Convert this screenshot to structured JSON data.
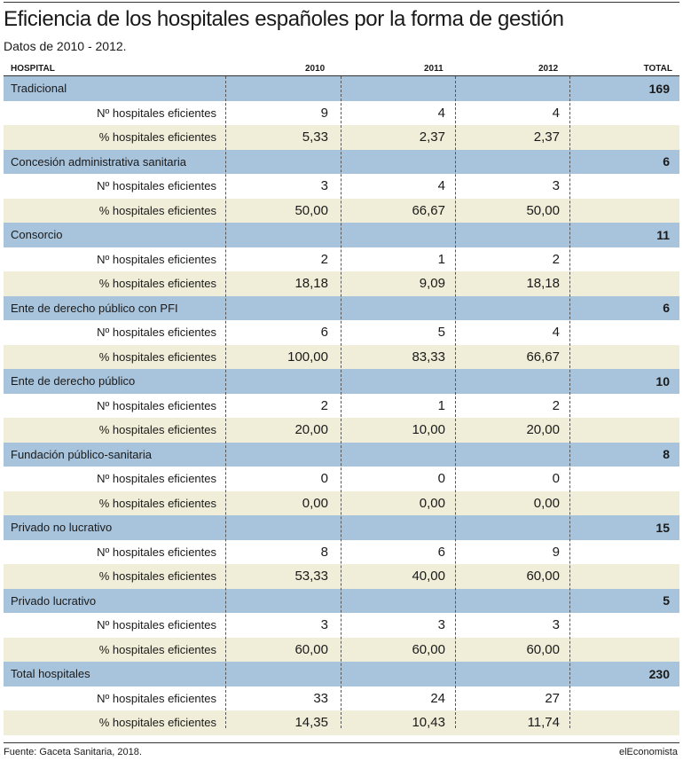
{
  "header": {
    "title": "Eficiencia de los hospitales españoles por la forma de gestión",
    "subtitle": "Datos de 2010 - 2012."
  },
  "columns": {
    "hospital": "HOSPITAL",
    "y2010": "2010",
    "y2011": "2011",
    "y2012": "2012",
    "total": "TOTAL"
  },
  "chart_data": {
    "type": "table",
    "title": "Eficiencia de los hospitales españoles por la forma de gestión",
    "subtitle": "Datos de 2010 - 2012.",
    "columns": [
      "HOSPITAL",
      "2010",
      "2011",
      "2012",
      "TOTAL"
    ],
    "groups": [
      {
        "name": "Tradicional",
        "total": "169",
        "n": {
          "label": "Nº hospitales eficientes",
          "values": [
            "9",
            "4",
            "4"
          ]
        },
        "pct": {
          "label": "% hospitales eficientes",
          "values": [
            "5,33",
            "2,37",
            "2,37"
          ]
        }
      },
      {
        "name": "Concesión administrativa sanitaria",
        "total": "6",
        "n": {
          "label": "Nº hospitales eficientes",
          "values": [
            "3",
            "4",
            "3"
          ]
        },
        "pct": {
          "label": "% hospitales eficientes",
          "values": [
            "50,00",
            "66,67",
            "50,00"
          ]
        }
      },
      {
        "name": "Consorcio",
        "total": "11",
        "n": {
          "label": "Nº hospitales eficientes",
          "values": [
            "2",
            "1",
            "2"
          ]
        },
        "pct": {
          "label": "% hospitales eficientes",
          "values": [
            "18,18",
            "9,09",
            "18,18"
          ]
        }
      },
      {
        "name": "Ente de derecho público con PFI",
        "total": "6",
        "n": {
          "label": "Nº hospitales eficientes",
          "values": [
            "6",
            "5",
            "4"
          ]
        },
        "pct": {
          "label": "% hospitales eficientes",
          "values": [
            "100,00",
            "83,33",
            "66,67"
          ]
        }
      },
      {
        "name": "Ente de derecho público",
        "total": "10",
        "n": {
          "label": "Nº hospitales eficientes",
          "values": [
            "2",
            "1",
            "2"
          ]
        },
        "pct": {
          "label": "% hospitales eficientes",
          "values": [
            "20,00",
            "10,00",
            "20,00"
          ]
        }
      },
      {
        "name": "Fundación público-sanitaria",
        "total": "8",
        "n": {
          "label": "Nº hospitales eficientes",
          "values": [
            "0",
            "0",
            "0"
          ]
        },
        "pct": {
          "label": "% hospitales eficientes",
          "values": [
            "0,00",
            "0,00",
            "0,00"
          ]
        }
      },
      {
        "name": "Privado no lucrativo",
        "total": "15",
        "n": {
          "label": "Nº hospitales eficientes",
          "values": [
            "8",
            "6",
            "9"
          ]
        },
        "pct": {
          "label": "% hospitales eficientes",
          "values": [
            "53,33",
            "40,00",
            "60,00"
          ]
        }
      },
      {
        "name": "Privado lucrativo",
        "total": "5",
        "n": {
          "label": "Nº hospitales eficientes",
          "values": [
            "3",
            "3",
            "3"
          ]
        },
        "pct": {
          "label": "% hospitales eficientes",
          "values": [
            "60,00",
            "60,00",
            "60,00"
          ]
        }
      },
      {
        "name": "Total hospitales",
        "total": "230",
        "n": {
          "label": "Nº hospitales eficientes",
          "values": [
            "33",
            "24",
            "27"
          ]
        },
        "pct": {
          "label": "% hospitales eficientes",
          "values": [
            "14,35",
            "10,43",
            "11,74"
          ]
        }
      }
    ]
  },
  "colors": {
    "group_row": "#a8c4dc",
    "pct_row": "#f0eed8",
    "n_row": "#ffffff"
  },
  "footer": {
    "source": "Fuente: Gaceta Sanitaria, 2018.",
    "brand": "elEconomista"
  }
}
